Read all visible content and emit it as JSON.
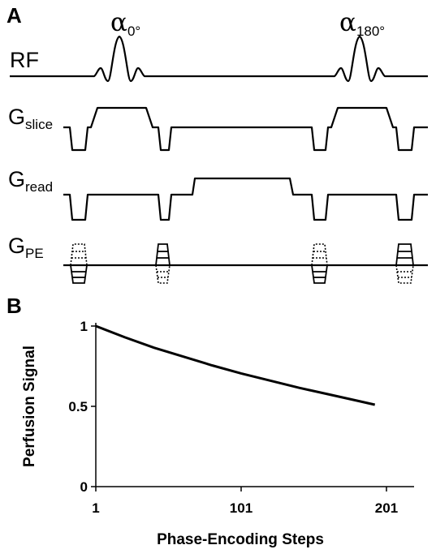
{
  "panel_a": {
    "letter": "A",
    "pulses": [
      {
        "symbol": "α",
        "subscript": "0°"
      },
      {
        "symbol": "α",
        "subscript": "180°"
      }
    ],
    "rows": [
      {
        "main": "RF",
        "sub": ""
      },
      {
        "main": "G",
        "sub": "slice"
      },
      {
        "main": "G",
        "sub": "read"
      },
      {
        "main": "G",
        "sub": "PE"
      }
    ]
  },
  "panel_b": {
    "letter": "B"
  },
  "chart_data": {
    "type": "line",
    "xlabel": "Phase-Encoding Steps",
    "ylabel": "Perfusion Signal",
    "xlim": [
      1,
      220
    ],
    "ylim": [
      0,
      1
    ],
    "xticks": [
      1,
      101,
      201
    ],
    "yticks": [
      0,
      0.5,
      1
    ],
    "ytick_labels": [
      "0",
      "0.5",
      "1"
    ],
    "grid": false,
    "series": [
      {
        "x": [
          1,
          21,
          41,
          61,
          81,
          101,
          121,
          141,
          161,
          181,
          193
        ],
        "values": [
          1.0,
          0.93,
          0.865,
          0.81,
          0.755,
          0.705,
          0.66,
          0.615,
          0.575,
          0.535,
          0.51
        ]
      }
    ]
  }
}
